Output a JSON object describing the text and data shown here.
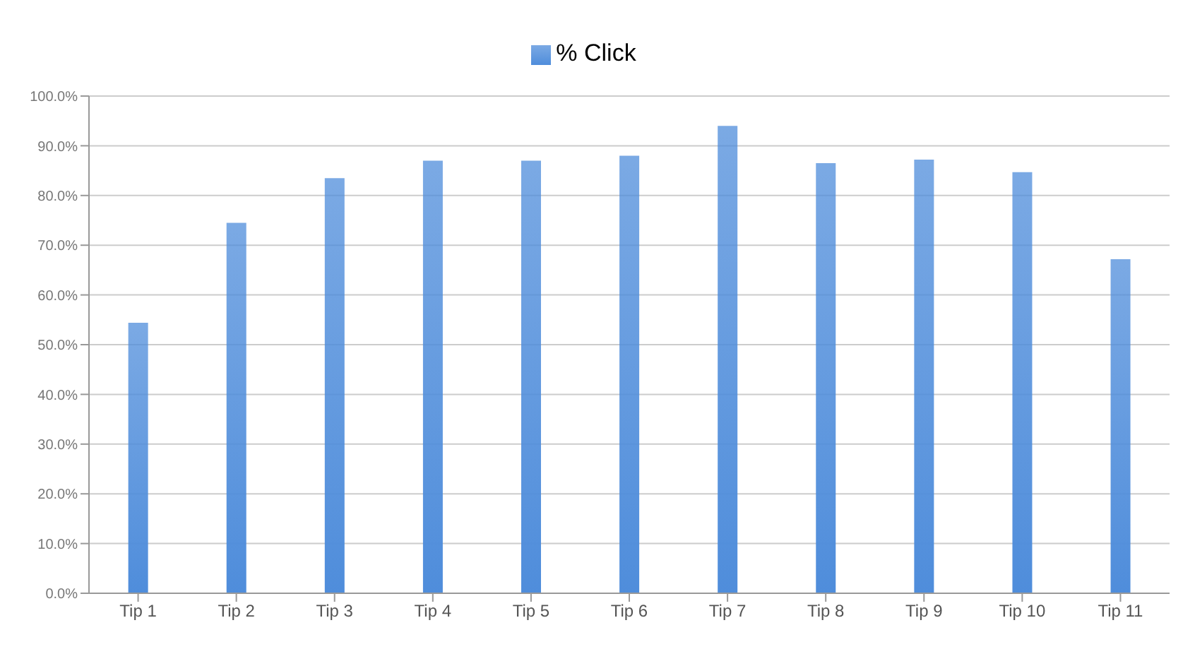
{
  "chart_data": {
    "type": "bar",
    "categories": [
      "Tip 1",
      "Tip 2",
      "Tip 3",
      "Tip 4",
      "Tip 5",
      "Tip 6",
      "Tip 7",
      "Tip 8",
      "Tip 9",
      "Tip 10",
      "Tip 11"
    ],
    "series": [
      {
        "name": "% Click",
        "color": "#4f8ddb",
        "values": [
          54.4,
          74.5,
          83.5,
          87,
          87,
          88,
          94,
          86.5,
          87.2,
          84.7,
          67.2
        ]
      }
    ],
    "ylim": [
      0,
      100
    ],
    "yticks": [
      {
        "value": 0,
        "label": "0.0%"
      },
      {
        "value": 10,
        "label": "10.0%"
      },
      {
        "value": 20,
        "label": "20.0%"
      },
      {
        "value": 30,
        "label": "30.0%"
      },
      {
        "value": 40,
        "label": "40.0%"
      },
      {
        "value": 50,
        "label": "50.0%"
      },
      {
        "value": 60,
        "label": "60.0%"
      },
      {
        "value": 70,
        "label": "70.0%"
      },
      {
        "value": 80,
        "label": "80.0%"
      },
      {
        "value": 90,
        "label": "90.0%"
      },
      {
        "value": 100,
        "label": "100.0%"
      }
    ],
    "grid": "y",
    "legend": "top"
  }
}
